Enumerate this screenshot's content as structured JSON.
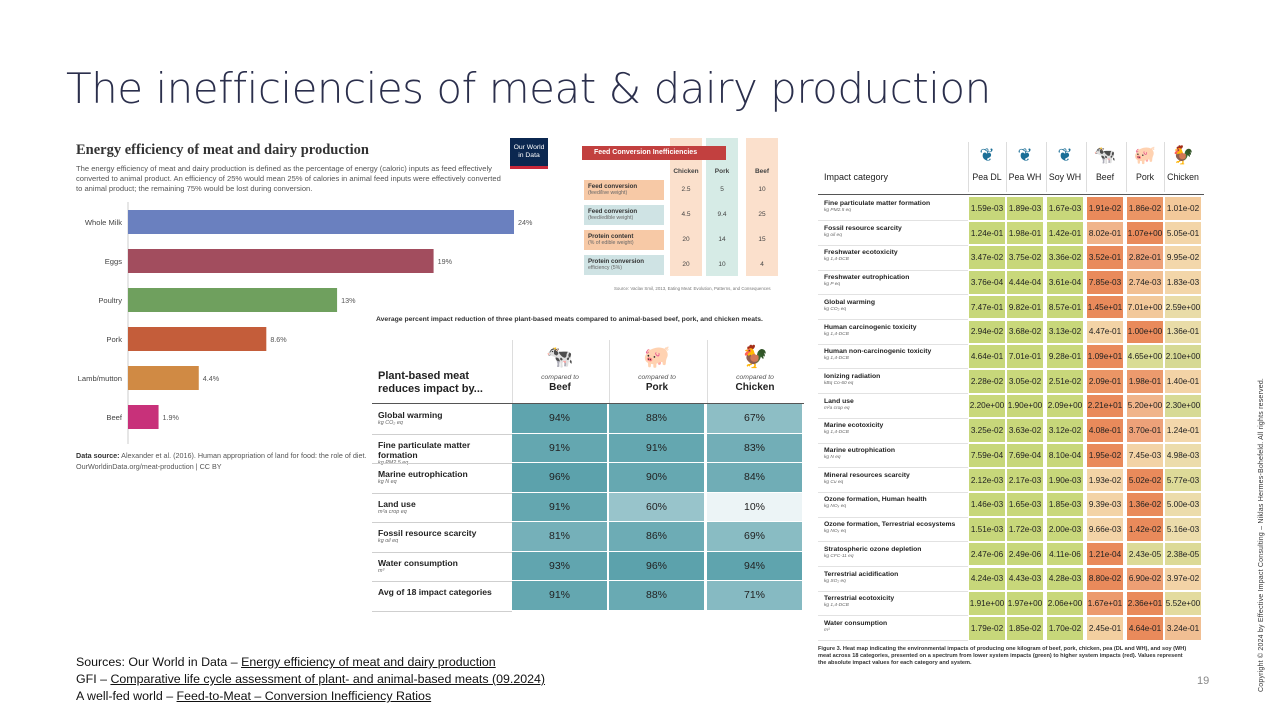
{
  "slide": {
    "title": "The inefficiencies of meat & dairy production",
    "page_number": "19",
    "copyright": "Copyright © 2024 by Effective Impact Consulting – Niklas Hermes-Bohefeld. All rights reserved."
  },
  "owid": {
    "title": "Energy efficiency of meat and dairy production",
    "description": "The energy efficiency of meat and dairy production is defined as the percentage of energy (caloric) inputs as feed effectively converted to animal product. An efficiency of 25% would mean 25% of calories in animal feed inputs were effectively converted to animal product; the remaining 75% would be lost during conversion.",
    "logo_line1": "Our World",
    "logo_line2": "in Data",
    "source_label": "Data source:",
    "source_text": "Alexander et al. (2016). Human appropriation of land for food: the role of diet.",
    "source_url": "OurWorldinData.org/meat-production | CC BY"
  },
  "chart_data": {
    "type": "bar",
    "orientation": "horizontal",
    "title": "Energy efficiency of meat and dairy production",
    "categories": [
      "Whole Milk",
      "Eggs",
      "Poultry",
      "Pork",
      "Lamb/mutton",
      "Beef"
    ],
    "values": [
      24,
      19,
      13,
      8.6,
      4.4,
      1.9
    ],
    "value_labels": [
      "24%",
      "19%",
      "13%",
      "8.6%",
      "4.4%",
      "1.9%"
    ],
    "colors": [
      "#6a80bf",
      "#a24d5e",
      "#6fa05e",
      "#c45d3a",
      "#d08a44",
      "#c8317a"
    ],
    "xlim": [
      0,
      24
    ]
  },
  "feed": {
    "title": "Feed Conversion Inefficiencies",
    "columns": [
      "Chicken",
      "Pork",
      "Beef"
    ],
    "rows": [
      {
        "label": "Feed conversion",
        "sub": "(feed/live weight)",
        "values": [
          "2.5",
          "5",
          "10"
        ]
      },
      {
        "label": "Feed conversion",
        "sub": "(feed/edible weight)",
        "values": [
          "4.5",
          "9.4",
          "25"
        ]
      },
      {
        "label": "Protein content",
        "sub": "(% of edible weight)",
        "values": [
          "20",
          "14",
          "15"
        ]
      },
      {
        "label": "Protein conversion",
        "sub": "efficiency (5%)",
        "values": [
          "20",
          "10",
          "4"
        ]
      }
    ],
    "source": "Source: Vaclav Smil, 2013, Eating Meat: Evolution, Patterns, and Consequences"
  },
  "gfi": {
    "caption": "Average percent impact reduction of three plant-based meats compared to animal-based beef, pork, and chicken meats.",
    "corner_line1": "Plant-based meat",
    "corner_line2": "reduces impact by...",
    "compared_to": "compared to",
    "columns": [
      "Beef",
      "Pork",
      "Chicken"
    ],
    "rows": [
      {
        "label": "Global warming",
        "unit": "kg CO₂ eq",
        "values": [
          "94%",
          "88%",
          "67%"
        ]
      },
      {
        "label": "Fine particulate matter formation",
        "unit": "kg PM2.5 eq",
        "values": [
          "91%",
          "91%",
          "83%"
        ]
      },
      {
        "label": "Marine eutrophication",
        "unit": "kg N eq",
        "values": [
          "96%",
          "90%",
          "84%"
        ]
      },
      {
        "label": "Land use",
        "unit": "m²a crop eq",
        "values": [
          "91%",
          "60%",
          "10%"
        ]
      },
      {
        "label": "Fossil resource scarcity",
        "unit": "kg oil eq",
        "values": [
          "81%",
          "86%",
          "69%"
        ]
      },
      {
        "label": "Water consumption",
        "unit": "m³",
        "values": [
          "93%",
          "96%",
          "94%"
        ]
      },
      {
        "label": "Avg of 18  impact categories",
        "unit": "",
        "values": [
          "91%",
          "88%",
          "71%"
        ]
      }
    ],
    "numeric_values": [
      [
        94,
        88,
        67
      ],
      [
        91,
        91,
        83
      ],
      [
        96,
        90,
        84
      ],
      [
        91,
        60,
        10
      ],
      [
        81,
        86,
        69
      ],
      [
        93,
        96,
        94
      ],
      [
        91,
        88,
        71
      ]
    ]
  },
  "heatmap": {
    "header_category": "Impact category",
    "columns": [
      "Pea DL",
      "Pea WH",
      "Soy WH",
      "Beef",
      "Pork",
      "Chicken"
    ],
    "rows": [
      {
        "label": "Fine particulate matter formation",
        "unit": "kg PM2.5 eq",
        "values": [
          "1.59e-03",
          "1.89e-03",
          "1.67e-03",
          "1.91e-02",
          "1.86e-02",
          "1.01e-02"
        ],
        "colors": [
          "#c7d77a",
          "#c9d87b",
          "#c8d77a",
          "#e98a5b",
          "#eb9565",
          "#f3c99a"
        ]
      },
      {
        "label": "Fossil resource scarcity",
        "unit": "kg oil eq",
        "values": [
          "1.24e-01",
          "1.98e-01",
          "1.42e-01",
          "8.02e-01",
          "1.07e+00",
          "5.05e-01"
        ],
        "colors": [
          "#c7d77a",
          "#cbd97c",
          "#c8d77a",
          "#f0b48a",
          "#e98a5b",
          "#f3d5a8"
        ]
      },
      {
        "label": "Freshwater ecotoxicity",
        "unit": "kg 1,4-DCB",
        "values": [
          "3.47e-02",
          "3.75e-02",
          "3.36e-02",
          "3.52e-01",
          "2.82e-01",
          "9.95e-02"
        ],
        "colors": [
          "#c7d77a",
          "#c8d77a",
          "#c7d77a",
          "#e98a5b",
          "#eda179",
          "#f3d7ab"
        ]
      },
      {
        "label": "Freshwater eutrophication",
        "unit": "kg P eq",
        "values": [
          "3.76e-04",
          "4.44e-04",
          "3.61e-04",
          "7.85e-03",
          "2.74e-03",
          "1.83e-03"
        ],
        "colors": [
          "#c7d77a",
          "#c9d87b",
          "#c7d77a",
          "#e98a5b",
          "#f2c093",
          "#f3d6a9"
        ]
      },
      {
        "label": "Global warming",
        "unit": "kg CO₂ eq",
        "values": [
          "7.47e-01",
          "9.82e-01",
          "8.57e-01",
          "1.45e+01",
          "7.01e+00",
          "2.59e+00"
        ],
        "colors": [
          "#c7d77a",
          "#c9d87b",
          "#c8d77a",
          "#e98a5b",
          "#f2c89a",
          "#e9dca8"
        ]
      },
      {
        "label": "Human carcinogenic toxicity",
        "unit": "kg 1,4-DCB",
        "values": [
          "2.94e-02",
          "3.68e-02",
          "3.13e-02",
          "4.47e-01",
          "1.00e+00",
          "1.36e-01"
        ],
        "colors": [
          "#c7d77a",
          "#c9d87b",
          "#c8d77a",
          "#f3d3a6",
          "#e98a5b",
          "#e9dca8"
        ]
      },
      {
        "label": "Human non-carcinogenic toxicity",
        "unit": "kg 1,4-DCB",
        "values": [
          "4.64e-01",
          "7.01e-01",
          "9.28e-01",
          "1.09e+01",
          "4.65e+00",
          "2.10e+00"
        ],
        "colors": [
          "#c7d77a",
          "#c8d77a",
          "#c9d87b",
          "#e98a5b",
          "#d9dc95",
          "#d6d994"
        ]
      },
      {
        "label": "Ionizing radiation",
        "unit": "kBq Co-60 eq",
        "values": [
          "2.28e-02",
          "3.05e-02",
          "2.51e-02",
          "2.09e-01",
          "1.98e-01",
          "1.40e-01"
        ],
        "colors": [
          "#c7d77a",
          "#c9d87b",
          "#c8d77a",
          "#eb9565",
          "#ec9a6d",
          "#f3d3a6"
        ]
      },
      {
        "label": "Land use",
        "unit": "m²a crop eq",
        "values": [
          "2.20e+00",
          "1.90e+00",
          "2.09e+00",
          "2.21e+01",
          "5.20e+00",
          "2.30e+00"
        ],
        "colors": [
          "#c9d87b",
          "#c8d77a",
          "#c9d87b",
          "#e98a5b",
          "#f0b48a",
          "#d7da95"
        ]
      },
      {
        "label": "Marine ecotoxicity",
        "unit": "kg 1,4-DCB",
        "values": [
          "3.25e-02",
          "3.63e-02",
          "3.12e-02",
          "4.08e-01",
          "3.70e-01",
          "1.24e-01"
        ],
        "colors": [
          "#c7d77a",
          "#c8d77a",
          "#c7d77a",
          "#e98a5b",
          "#eda179",
          "#f3d7ab"
        ]
      },
      {
        "label": "Marine eutrophication",
        "unit": "kg N eq",
        "values": [
          "7.59e-04",
          "7.69e-04",
          "8.10e-04",
          "1.95e-02",
          "7.45e-03",
          "4.98e-03"
        ],
        "colors": [
          "#c7d77a",
          "#c7d77a",
          "#c8d77a",
          "#e98a5b",
          "#f3d3a6",
          "#ecdcab"
        ]
      },
      {
        "label": "Mineral resources scarcity",
        "unit": "kg Cu eq",
        "values": [
          "2.12e-03",
          "2.17e-03",
          "1.90e-03",
          "1.93e-02",
          "5.02e-02",
          "5.77e-03"
        ],
        "colors": [
          "#c7d77a",
          "#c8d77a",
          "#c7d77a",
          "#f3d3a6",
          "#e98a5b",
          "#ddda98"
        ]
      },
      {
        "label": "Ozone formation, Human health",
        "unit": "kg NOₓ eq",
        "values": [
          "1.46e-03",
          "1.65e-03",
          "1.85e-03",
          "9.39e-03",
          "1.36e-02",
          "5.00e-03"
        ],
        "colors": [
          "#c7d77a",
          "#c8d77a",
          "#c9d87b",
          "#f3d3a6",
          "#e98a5b",
          "#ecdcab"
        ]
      },
      {
        "label": "Ozone formation, Terrestrial ecosystems",
        "unit": "kg NOₓ eq",
        "values": [
          "1.51e-03",
          "1.72e-03",
          "2.00e-03",
          "9.66e-03",
          "1.42e-02",
          "5.16e-03"
        ],
        "colors": [
          "#c7d77a",
          "#c8d77a",
          "#c9d87b",
          "#f3d3a6",
          "#e98a5b",
          "#ecdcab"
        ]
      },
      {
        "label": "Stratospheric ozone depletion",
        "unit": "kg CFC-11 eq",
        "values": [
          "2.47e-06",
          "2.49e-06",
          "4.11e-06",
          "1.21e-04",
          "2.43e-05",
          "2.38e-05"
        ],
        "colors": [
          "#c7d77a",
          "#c7d77a",
          "#c9d87b",
          "#e98a5b",
          "#dcda97",
          "#dcda97"
        ]
      },
      {
        "label": "Terrestrial acidification",
        "unit": "kg SO₂ eq",
        "values": [
          "4.24e-03",
          "4.43e-03",
          "4.28e-03",
          "8.80e-02",
          "6.90e-02",
          "3.97e-02"
        ],
        "colors": [
          "#c7d77a",
          "#c8d77a",
          "#c7d77a",
          "#e98a5b",
          "#ed9f74",
          "#f3d3a6"
        ]
      },
      {
        "label": "Terrestrial ecotoxicity",
        "unit": "kg 1,4-DCB",
        "values": [
          "1.91e+00",
          "1.97e+00",
          "2.06e+00",
          "1.67e+01",
          "2.36e+01",
          "5.52e+00"
        ],
        "colors": [
          "#c7d77a",
          "#c7d77a",
          "#c8d77a",
          "#ec9a6d",
          "#e98a5b",
          "#e3db9f"
        ]
      },
      {
        "label": "Water consumption",
        "unit": "m³",
        "values": [
          "1.79e-02",
          "1.85e-02",
          "1.70e-02",
          "2.45e-01",
          "4.64e-01",
          "3.24e-01"
        ],
        "colors": [
          "#c7d77a",
          "#c8d77a",
          "#c7d77a",
          "#f3cfa0",
          "#e98a5b",
          "#f1bf93"
        ]
      }
    ],
    "caption": "Figure 3. Heat map indicating the environmental impacts of producing one kilogram of beef, pork, chicken, pea (DL and WH), and soy (WH) meat across 18 categories, presented on a spectrum from lower system impacts (green) to higher system impacts (red). Values represent the absolute impact values for each category and system."
  },
  "sources": [
    {
      "prefix": "Sources: Our World in Data – ",
      "link": "Energy efficiency of meat and dairy production"
    },
    {
      "prefix": "GFI – ",
      "link": "Comparative life cycle assessment of plant- and animal-based meats (09.2024)"
    },
    {
      "prefix": "A well-fed world – ",
      "link": "Feed-to-Meat – Conversion Inefficiency Ratios"
    }
  ]
}
